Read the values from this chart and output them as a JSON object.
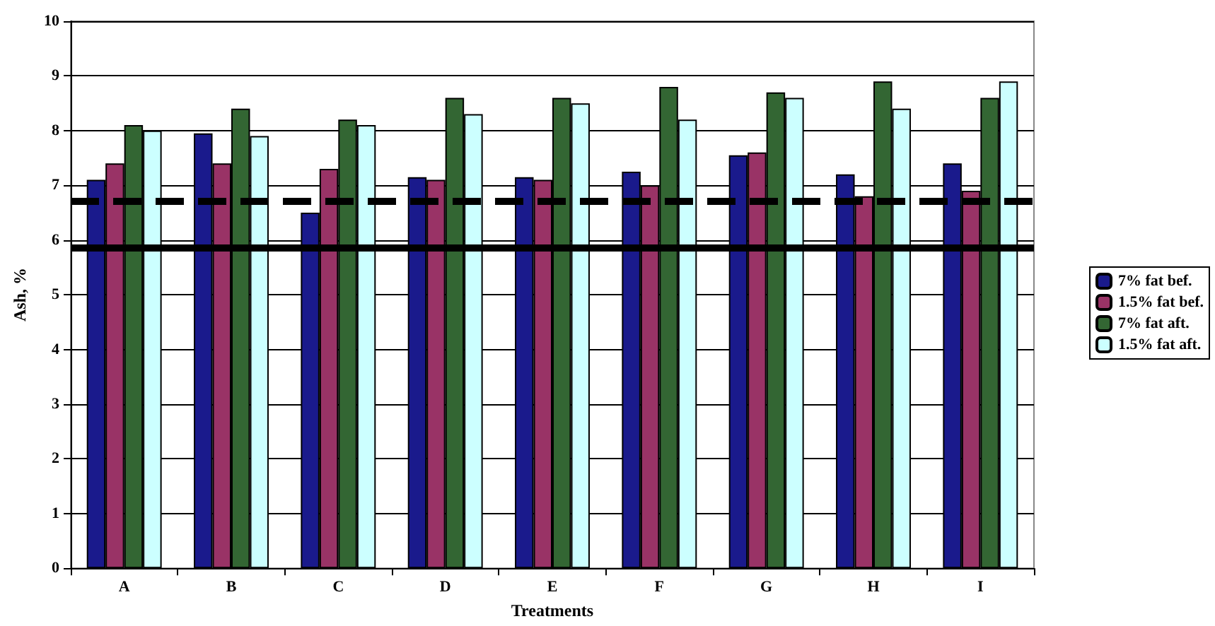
{
  "chart_data": {
    "type": "bar",
    "xlabel": "Treatments",
    "ylabel": "Ash, %",
    "categories": [
      "A",
      "B",
      "C",
      "D",
      "E",
      "F",
      "G",
      "H",
      "I"
    ],
    "series": [
      {
        "name": "7% fat bef.",
        "color": "#1a1a8c",
        "values": [
          7.1,
          7.95,
          6.5,
          7.15,
          7.15,
          7.25,
          7.55,
          7.2,
          7.4
        ]
      },
      {
        "name": "1.5% fat bef.",
        "color": "#993366",
        "values": [
          7.4,
          7.4,
          7.3,
          7.1,
          7.1,
          7.0,
          7.6,
          6.8,
          6.9
        ]
      },
      {
        "name": "7% fat aft.",
        "color": "#336633",
        "values": [
          8.1,
          8.4,
          8.2,
          8.6,
          8.6,
          8.8,
          8.7,
          8.9,
          8.6
        ]
      },
      {
        "name": "1.5% fat aft.",
        "color": "#ccffff",
        "values": [
          8.0,
          7.9,
          8.1,
          8.3,
          8.5,
          8.2,
          8.6,
          8.4,
          8.9
        ]
      }
    ],
    "ylim": [
      0,
      10
    ],
    "yticks": [
      0,
      1,
      2,
      3,
      4,
      5,
      6,
      7,
      8,
      9,
      10
    ],
    "grid": "y",
    "legend": "right",
    "ref_lines": [
      {
        "axis": "y",
        "value": 6.7,
        "color": "#000000",
        "line_style": "dashed"
      },
      {
        "axis": "y",
        "value": 5.85,
        "color": "#000000",
        "line_style": "solid"
      }
    ]
  }
}
